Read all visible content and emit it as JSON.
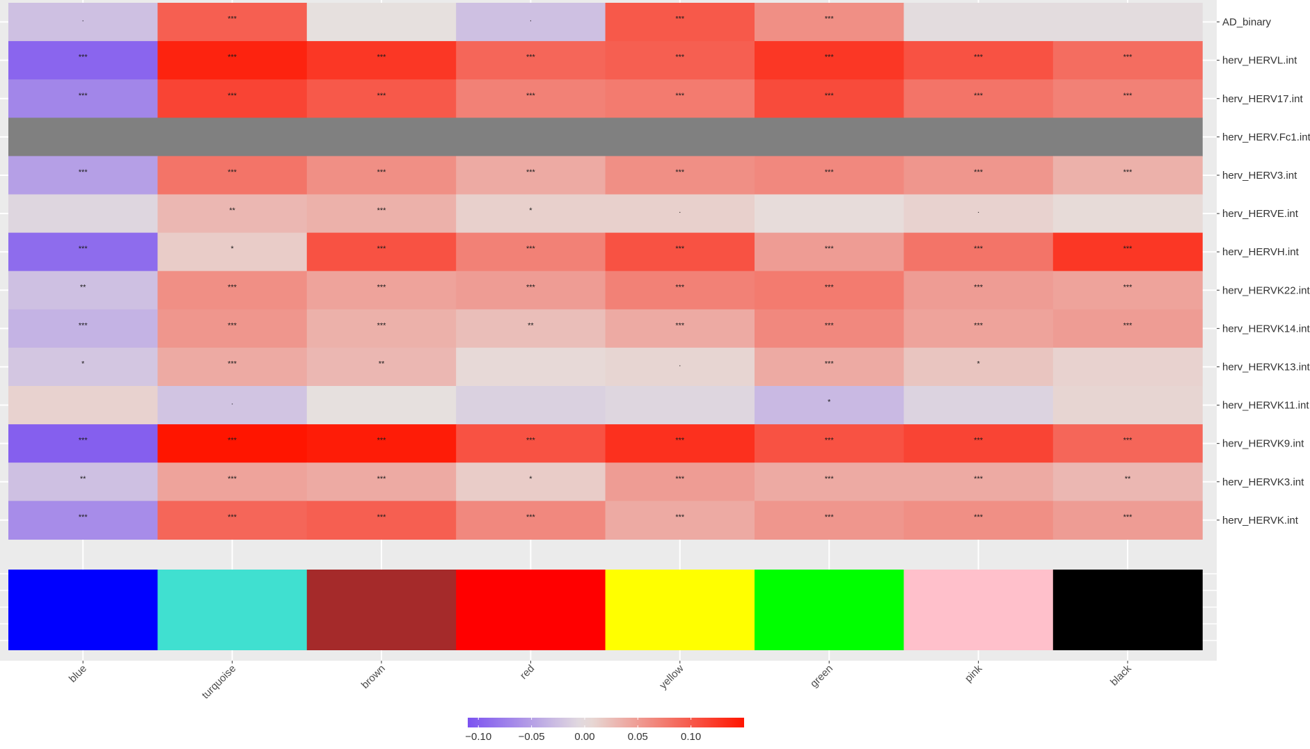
{
  "chart_data": {
    "type": "heatmap",
    "title": "",
    "xlabel": "",
    "ylabel": "",
    "columns": [
      "blue",
      "turquoise",
      "brown",
      "red",
      "yellow",
      "green",
      "pink",
      "black"
    ],
    "rows": [
      "AD_binary",
      "herv_HERVL.int",
      "herv_HERV17.int",
      "herv_HERV.Fc1.int",
      "herv_HERV3.int",
      "herv_HERVE.int",
      "herv_HERVH.int",
      "herv_HERVK22.int",
      "herv_HERVK14.int",
      "herv_HERVK13.int",
      "herv_HERVK11.int",
      "herv_HERVK9.int",
      "herv_HERVK3.int",
      "herv_HERVK.int"
    ],
    "values": [
      [
        -0.025,
        0.095,
        0.0,
        -0.025,
        0.1,
        0.06,
        -0.003,
        -0.003
      ],
      [
        -0.095,
        0.14,
        0.125,
        0.09,
        0.095,
        0.125,
        0.105,
        0.085
      ],
      [
        -0.07,
        0.115,
        0.1,
        0.07,
        0.075,
        0.11,
        0.08,
        0.07
      ],
      [
        null,
        null,
        null,
        null,
        null,
        null,
        null,
        null
      ],
      [
        -0.05,
        0.08,
        0.06,
        0.04,
        0.06,
        0.065,
        0.055,
        0.035
      ],
      [
        -0.008,
        0.03,
        0.035,
        0.012,
        0.012,
        0.003,
        0.01,
        0.004
      ],
      [
        -0.09,
        0.015,
        0.105,
        0.07,
        0.105,
        0.05,
        0.08,
        0.125
      ],
      [
        -0.025,
        0.06,
        0.045,
        0.05,
        0.07,
        0.075,
        0.05,
        0.045
      ],
      [
        -0.035,
        0.055,
        0.035,
        0.025,
        0.04,
        0.065,
        0.045,
        0.05
      ],
      [
        -0.02,
        0.04,
        0.03,
        0.005,
        0.008,
        0.04,
        0.02,
        0.01
      ],
      [
        0.01,
        -0.022,
        0.0,
        -0.012,
        -0.008,
        -0.03,
        -0.01,
        0.008
      ],
      [
        -0.1,
        0.15,
        0.145,
        0.105,
        0.13,
        0.105,
        0.115,
        0.09
      ],
      [
        -0.025,
        0.045,
        0.04,
        0.015,
        0.05,
        0.04,
        0.04,
        0.03
      ],
      [
        -0.065,
        0.09,
        0.095,
        0.065,
        0.04,
        0.055,
        0.06,
        0.05
      ]
    ],
    "significance": [
      [
        ".",
        "***",
        "",
        ".",
        "***",
        "***",
        "",
        ""
      ],
      [
        "***",
        "***",
        "***",
        "***",
        "***",
        "***",
        "***",
        "***"
      ],
      [
        "***",
        "***",
        "***",
        "***",
        "***",
        "***",
        "***",
        "***"
      ],
      [
        "",
        "",
        "",
        "",
        "",
        "",
        "",
        ""
      ],
      [
        "***",
        "***",
        "***",
        "***",
        "***",
        "***",
        "***",
        "***"
      ],
      [
        "",
        "**",
        "***",
        "*",
        ".",
        "",
        ".",
        ""
      ],
      [
        "***",
        "*",
        "***",
        "***",
        "***",
        "***",
        "***",
        "***"
      ],
      [
        "**",
        "***",
        "***",
        "***",
        "***",
        "***",
        "***",
        "***"
      ],
      [
        "***",
        "***",
        "***",
        "**",
        "***",
        "***",
        "***",
        "***"
      ],
      [
        "*",
        "***",
        "**",
        "",
        ".",
        "***",
        "*",
        ""
      ],
      [
        "",
        ".",
        "",
        "",
        "",
        "*",
        "",
        ""
      ],
      [
        "***",
        "***",
        "***",
        "***",
        "***",
        "***",
        "***",
        "***"
      ],
      [
        "**",
        "***",
        "***",
        "*",
        "***",
        "***",
        "***",
        "**"
      ],
      [
        "***",
        "***",
        "***",
        "***",
        "***",
        "***",
        "***",
        "***"
      ]
    ],
    "module_colors": [
      "#0000FF",
      "#40E0D0",
      "#A52A2A",
      "#FF0000",
      "#FFFF00",
      "#00FF00",
      "#FFC0CB",
      "#000000"
    ],
    "na_color": "#808080",
    "color_scale": {
      "low": "#7B52F0",
      "mid": "#E6E0DE",
      "high": "#FF1500",
      "domain": [
        -0.11,
        0.15
      ],
      "midpoint": 0,
      "ticks": [
        -0.1,
        -0.05,
        0.0,
        0.05,
        0.1
      ],
      "tick_labels": [
        "−0.10",
        "−0.05",
        "0.00",
        "0.05",
        "0.10"
      ],
      "placement": "bottom"
    },
    "panel_background": "#EBEBEB",
    "grid": true
  }
}
